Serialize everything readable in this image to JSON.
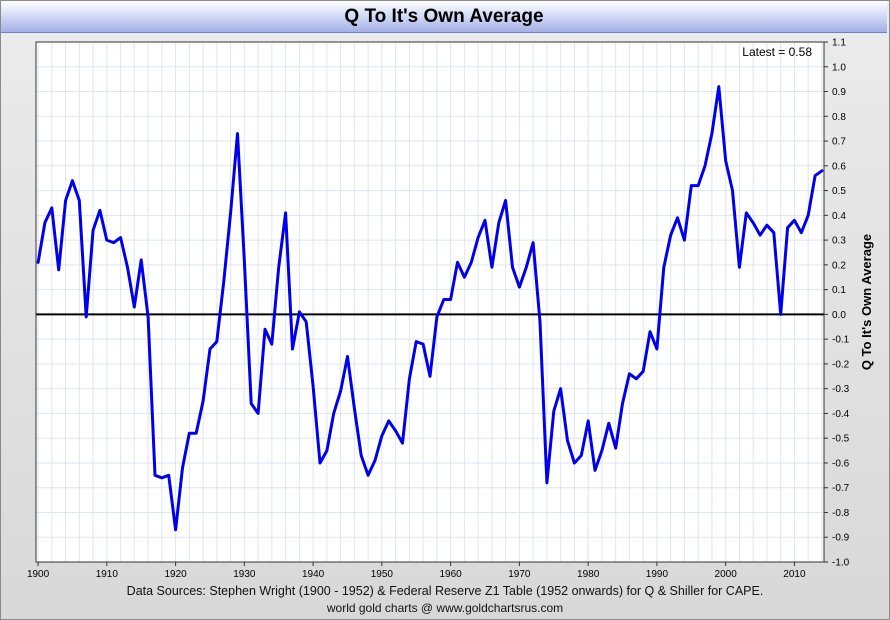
{
  "title": "Q To It's Own Average",
  "latest_label": "Latest = 0.58",
  "footer": {
    "sources": "Data Sources: Stephen Wright (1900 - 1952) & Federal Reserve Z1 Table (1952 onwards) for Q & Shiller for CAPE.",
    "credit": "world gold charts @ www.goldchartsrus.com"
  },
  "colors": {
    "line": "#0000ee",
    "zero_line": "#000000",
    "grid": "#dde6f0",
    "plot_bg": "#ffffff"
  },
  "chart_data": {
    "type": "line",
    "title": "Q To It's Own Average",
    "ylabel": "Q To It's Own Average",
    "xlabel": "",
    "xlim": [
      1899.7,
      2014.3
    ],
    "ylim": [
      -1.0,
      1.1
    ],
    "y_axis_side": "right",
    "grid": true,
    "legend": "none",
    "x_ticks": [
      "1900",
      "1910",
      "1920",
      "1930",
      "1940",
      "1950",
      "1960",
      "1970",
      "1980",
      "1990",
      "2000",
      "2010"
    ],
    "y_ticks": [
      "1.1",
      "1.0",
      "0.9",
      "0.8",
      "0.7",
      "0.6",
      "0.5",
      "0.4",
      "0.3",
      "0.2",
      "0.1",
      "0.0",
      "-0.1",
      "-0.2",
      "-0.3",
      "-0.4",
      "-0.5",
      "-0.6",
      "-0.7",
      "-0.8",
      "-0.9",
      "-1.0"
    ],
    "series": [
      {
        "x": [
          1900,
          1901,
          1902,
          1903,
          1904,
          1905,
          1906,
          1907,
          1908,
          1909,
          1910,
          1911,
          1912,
          1913,
          1914,
          1915,
          1916,
          1917,
          1918,
          1919,
          1920,
          1921,
          1922,
          1923,
          1924,
          1925,
          1926,
          1927,
          1928,
          1929,
          1930,
          1931,
          1932,
          1933,
          1934,
          1935,
          1936,
          1937,
          1938,
          1939,
          1940,
          1941,
          1942,
          1943,
          1944,
          1945,
          1946,
          1947,
          1948,
          1949,
          1950,
          1951,
          1952,
          1953,
          1954,
          1955,
          1956,
          1957,
          1958,
          1959,
          1960,
          1961,
          1962,
          1963,
          1964,
          1965,
          1966,
          1967,
          1968,
          1969,
          1970,
          1971,
          1972,
          1973,
          1974,
          1975,
          1976,
          1977,
          1978,
          1979,
          1980,
          1981,
          1982,
          1983,
          1984,
          1985,
          1986,
          1987,
          1988,
          1989,
          1990,
          1991,
          1992,
          1993,
          1994,
          1995,
          1996,
          1997,
          1998,
          1999,
          2000,
          2001,
          2002,
          2003,
          2004,
          2005,
          2006,
          2007,
          2008,
          2009,
          2010,
          2011,
          2012,
          2013,
          2014
        ],
        "values": [
          0.21,
          0.37,
          0.43,
          0.18,
          0.46,
          0.54,
          0.46,
          -0.01,
          0.34,
          0.42,
          0.3,
          0.29,
          0.31,
          0.19,
          0.03,
          0.22,
          -0.01,
          -0.65,
          -0.66,
          -0.65,
          -0.87,
          -0.62,
          -0.48,
          -0.48,
          -0.35,
          -0.14,
          -0.11,
          0.13,
          0.41,
          0.73,
          0.22,
          -0.36,
          -0.4,
          -0.06,
          -0.12,
          0.19,
          0.41,
          -0.14,
          0.01,
          -0.03,
          -0.29,
          -0.6,
          -0.55,
          -0.4,
          -0.31,
          -0.17,
          -0.38,
          -0.57,
          -0.65,
          -0.59,
          -0.49,
          -0.43,
          -0.47,
          -0.52,
          -0.26,
          -0.11,
          -0.12,
          -0.25,
          -0.01,
          0.06,
          0.06,
          0.21,
          0.15,
          0.21,
          0.31,
          0.38,
          0.19,
          0.37,
          0.46,
          0.19,
          0.11,
          0.19,
          0.29,
          -0.03,
          -0.68,
          -0.39,
          -0.3,
          -0.51,
          -0.6,
          -0.57,
          -0.43,
          -0.63,
          -0.55,
          -0.44,
          -0.54,
          -0.36,
          -0.24,
          -0.26,
          -0.23,
          -0.07,
          -0.14,
          0.19,
          0.32,
          0.39,
          0.3,
          0.52,
          0.52,
          0.6,
          0.73,
          0.92,
          0.62,
          0.5,
          0.19,
          0.41,
          0.37,
          0.32,
          0.36,
          0.33,
          0.0,
          0.35,
          0.38,
          0.33,
          0.4,
          0.56,
          0.58
        ]
      }
    ]
  }
}
